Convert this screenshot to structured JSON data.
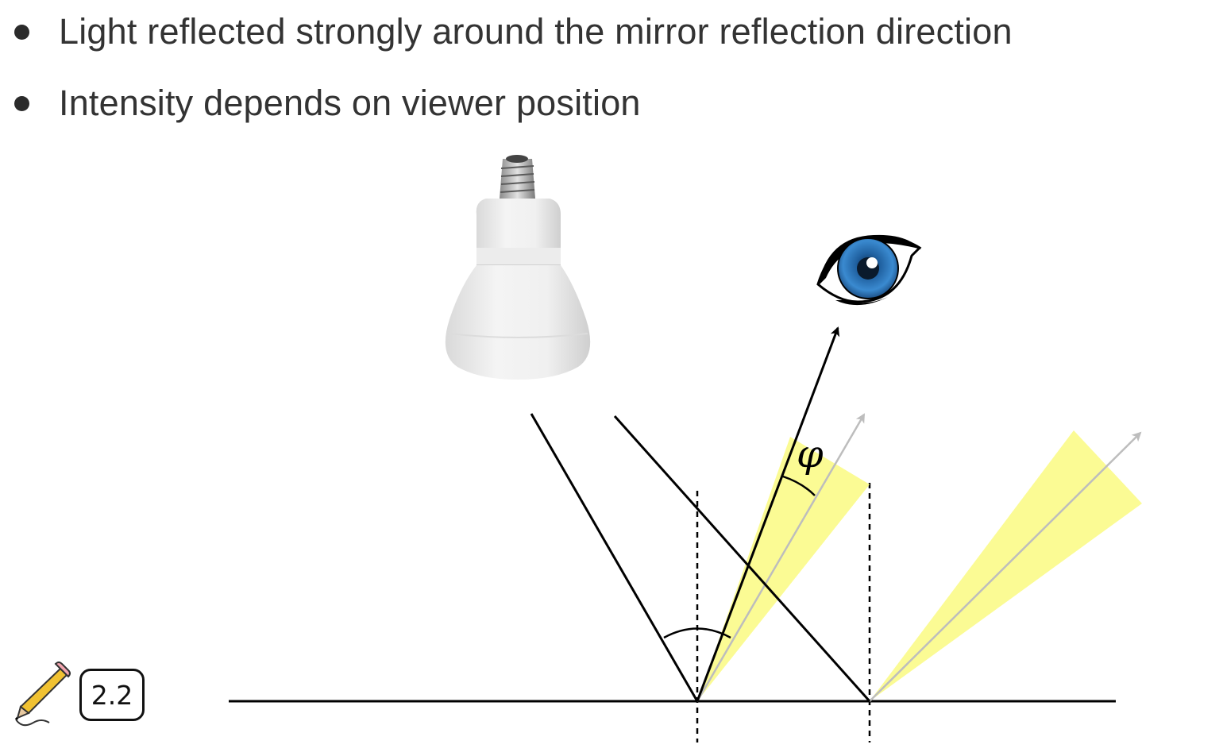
{
  "bullets": [
    {
      "text": "Light reflected strongly around the mirror reflection direction"
    },
    {
      "text": "Intensity depends on viewer position"
    }
  ],
  "diagram": {
    "angle_label": "φ",
    "badge_label": "2.2",
    "icons": {
      "light_source": "light-bulb-icon",
      "viewer": "eye-icon",
      "annotation": "pencil-icon"
    },
    "colors": {
      "highlight_cone": "#fbfb8e",
      "reflection_ray": "#bdbdbd",
      "lines": "#000000",
      "eye_iris": "#2a6fb3"
    }
  }
}
